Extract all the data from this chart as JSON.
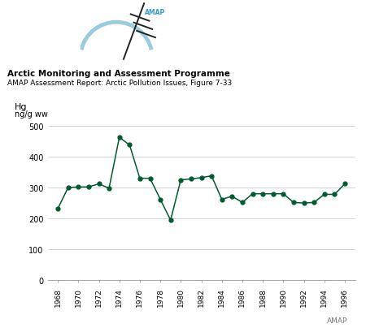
{
  "title_bold": "Arctic Monitoring and Assessment Programme",
  "title_sub": "AMAP Assessment Report: Arctic Pollution Issues, Figure 7-33",
  "ylabel_line1": "Hg",
  "ylabel_line2": "ng/g ww",
  "years": [
    1968,
    1969,
    1970,
    1971,
    1972,
    1973,
    1974,
    1975,
    1976,
    1977,
    1978,
    1979,
    1980,
    1981,
    1982,
    1983,
    1984,
    1985,
    1986,
    1987,
    1988,
    1989,
    1990,
    1991,
    1992,
    1993,
    1994,
    1995,
    1996
  ],
  "values": [
    232,
    300,
    302,
    302,
    312,
    298,
    462,
    438,
    330,
    330,
    262,
    195,
    325,
    328,
    332,
    338,
    262,
    272,
    252,
    280,
    280,
    280,
    280,
    252,
    250,
    252,
    278,
    278,
    312
  ],
  "line_color": "#005c2e",
  "marker": "o",
  "marker_size": 3.5,
  "ylim": [
    0,
    500
  ],
  "yticks": [
    0,
    100,
    200,
    300,
    400,
    500
  ],
  "xlim": [
    1967,
    1997
  ],
  "xticks": [
    1968,
    1970,
    1972,
    1974,
    1976,
    1978,
    1980,
    1982,
    1984,
    1986,
    1988,
    1990,
    1992,
    1994,
    1996
  ],
  "grid_color": "#cccccc",
  "bg_color": "#ffffff",
  "amap_label": "AMAP",
  "amap_label_color": "#777777",
  "logo_arc_color": "#99ccdd",
  "logo_text_color": "#3399cc",
  "logo_flag_color": "#222222"
}
